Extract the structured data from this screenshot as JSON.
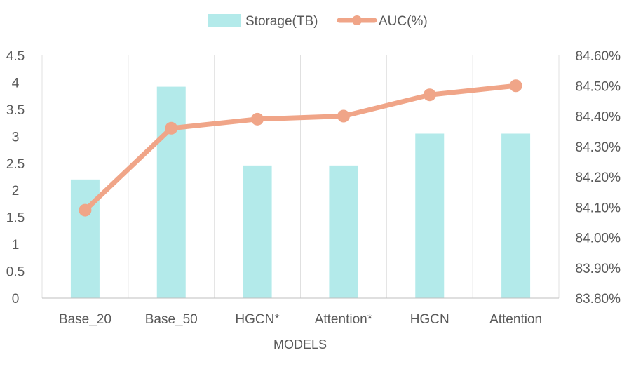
{
  "chart_data": {
    "type": "bar+line",
    "categories": [
      "Base_20",
      "Base_50",
      "HGCN*",
      "Attention*",
      "HGCN",
      "Attention"
    ],
    "series": [
      {
        "name": "Storage(TB)",
        "type": "bar",
        "axis": "left",
        "values": [
          2.2,
          3.92,
          2.46,
          2.46,
          3.05,
          3.05
        ],
        "color": "#b3eaea"
      },
      {
        "name": "AUC(%)",
        "type": "line",
        "axis": "right",
        "values": [
          84.09,
          84.36,
          84.39,
          84.4,
          84.47,
          84.5
        ],
        "color": "#f0a588"
      }
    ],
    "xlabel": "MODELS",
    "y_left": {
      "min": 0,
      "max": 4.5,
      "ticks": [
        "0",
        "0.5",
        "1",
        "1.5",
        "2",
        "2.5",
        "3",
        "3.5",
        "4",
        "4.5"
      ]
    },
    "y_right": {
      "min": 83.8,
      "max": 84.6,
      "ticks": [
        "83.80%",
        "83.90%",
        "84.00%",
        "84.10%",
        "84.20%",
        "84.30%",
        "84.40%",
        "84.50%",
        "84.60%"
      ]
    },
    "grid": "vertical",
    "legend": "top-center",
    "gridline_color": "#e0e0e0",
    "axis_line_color": "#bfbfbf"
  }
}
